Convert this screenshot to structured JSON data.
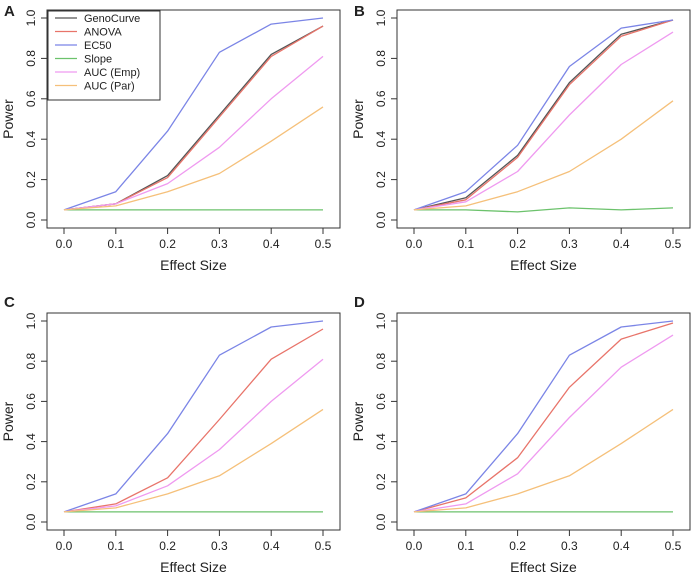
{
  "chart_data": [
    {
      "type": "line",
      "panel_label": "A",
      "xlabel": "Effect Size",
      "ylabel": "Power",
      "x": [
        0.0,
        0.1,
        0.2,
        0.3,
        0.4,
        0.5
      ],
      "x_tick_labels": [
        "0.0",
        "0.1",
        "0.2",
        "0.3",
        "0.4",
        "0.5"
      ],
      "y_ticks": [
        0.0,
        0.2,
        0.4,
        0.6,
        0.8,
        1.0
      ],
      "y_tick_labels": [
        "0.0",
        "0.2",
        "0.4",
        "0.6",
        "0.8",
        "1.0"
      ],
      "xlim": [
        0.0,
        0.5
      ],
      "ylim": [
        0.0,
        1.0
      ],
      "legend": "top-left",
      "series": [
        {
          "name": "GenoCurve",
          "color": "#555555",
          "values": [
            0.05,
            0.08,
            0.22,
            0.52,
            0.82,
            0.96
          ]
        },
        {
          "name": "ANOVA",
          "color": "#e8746a",
          "values": [
            0.05,
            0.08,
            0.21,
            0.51,
            0.81,
            0.96
          ]
        },
        {
          "name": "EC50",
          "color": "#7b85e6",
          "values": [
            0.05,
            0.14,
            0.44,
            0.83,
            0.97,
            1.0
          ]
        },
        {
          "name": "Slope",
          "color": "#6cc26c",
          "values": [
            0.05,
            0.05,
            0.05,
            0.05,
            0.05,
            0.05
          ]
        },
        {
          "name": "AUC (Emp)",
          "color": "#ef9af0",
          "values": [
            0.05,
            0.08,
            0.18,
            0.36,
            0.6,
            0.81
          ]
        },
        {
          "name": "AUC (Par)",
          "color": "#f5c07a",
          "values": [
            0.05,
            0.07,
            0.14,
            0.23,
            0.39,
            0.56
          ]
        }
      ]
    },
    {
      "type": "line",
      "panel_label": "B",
      "xlabel": "Effect Size",
      "ylabel": "Power",
      "x": [
        0.0,
        0.1,
        0.2,
        0.3,
        0.4,
        0.5
      ],
      "x_tick_labels": [
        "0.0",
        "0.1",
        "0.2",
        "0.3",
        "0.4",
        "0.5"
      ],
      "y_ticks": [
        0.0,
        0.2,
        0.4,
        0.6,
        0.8,
        1.0
      ],
      "y_tick_labels": [
        "0.0",
        "0.2",
        "0.4",
        "0.6",
        "0.8",
        "1.0"
      ],
      "xlim": [
        0.0,
        0.5
      ],
      "ylim": [
        0.0,
        1.0
      ],
      "legend": "none",
      "series": [
        {
          "name": "GenoCurve",
          "color": "#555555",
          "values": [
            0.05,
            0.11,
            0.32,
            0.68,
            0.92,
            0.99
          ]
        },
        {
          "name": "ANOVA",
          "color": "#e8746a",
          "values": [
            0.05,
            0.1,
            0.31,
            0.67,
            0.91,
            0.99
          ]
        },
        {
          "name": "EC50",
          "color": "#7b85e6",
          "values": [
            0.05,
            0.14,
            0.37,
            0.76,
            0.95,
            0.99
          ]
        },
        {
          "name": "Slope",
          "color": "#6cc26c",
          "values": [
            0.05,
            0.05,
            0.04,
            0.06,
            0.05,
            0.06
          ]
        },
        {
          "name": "AUC (Emp)",
          "color": "#ef9af0",
          "values": [
            0.05,
            0.09,
            0.24,
            0.52,
            0.77,
            0.93
          ]
        },
        {
          "name": "AUC (Par)",
          "color": "#f5c07a",
          "values": [
            0.05,
            0.07,
            0.14,
            0.24,
            0.4,
            0.59
          ]
        }
      ]
    },
    {
      "type": "line",
      "panel_label": "C",
      "xlabel": "Effect Size",
      "ylabel": "Power",
      "x": [
        0.0,
        0.1,
        0.2,
        0.3,
        0.4,
        0.5
      ],
      "x_tick_labels": [
        "0.0",
        "0.1",
        "0.2",
        "0.3",
        "0.4",
        "0.5"
      ],
      "y_ticks": [
        0.0,
        0.2,
        0.4,
        0.6,
        0.8,
        1.0
      ],
      "y_tick_labels": [
        "0.0",
        "0.2",
        "0.4",
        "0.6",
        "0.8",
        "1.0"
      ],
      "xlim": [
        0.0,
        0.5
      ],
      "ylim": [
        0.0,
        1.0
      ],
      "legend": "none",
      "series": [
        {
          "name": "ANOVA",
          "color": "#e8746a",
          "values": [
            0.05,
            0.09,
            0.22,
            0.51,
            0.81,
            0.96
          ]
        },
        {
          "name": "EC50",
          "color": "#7b85e6",
          "values": [
            0.05,
            0.14,
            0.44,
            0.83,
            0.97,
            1.0
          ]
        },
        {
          "name": "Slope",
          "color": "#6cc26c",
          "values": [
            0.05,
            0.05,
            0.05,
            0.05,
            0.05,
            0.05
          ]
        },
        {
          "name": "AUC (Emp)",
          "color": "#ef9af0",
          "values": [
            0.05,
            0.08,
            0.18,
            0.36,
            0.6,
            0.81
          ]
        },
        {
          "name": "AUC (Par)",
          "color": "#f5c07a",
          "values": [
            0.05,
            0.07,
            0.14,
            0.23,
            0.39,
            0.56
          ]
        }
      ]
    },
    {
      "type": "line",
      "panel_label": "D",
      "xlabel": "Effect Size",
      "ylabel": "Power",
      "x": [
        0.0,
        0.1,
        0.2,
        0.3,
        0.4,
        0.5
      ],
      "x_tick_labels": [
        "0.0",
        "0.1",
        "0.2",
        "0.3",
        "0.4",
        "0.5"
      ],
      "y_ticks": [
        0.0,
        0.2,
        0.4,
        0.6,
        0.8,
        1.0
      ],
      "y_tick_labels": [
        "0.0",
        "0.2",
        "0.4",
        "0.6",
        "0.8",
        "1.0"
      ],
      "xlim": [
        0.0,
        0.5
      ],
      "ylim": [
        0.0,
        1.0
      ],
      "legend": "none",
      "series": [
        {
          "name": "ANOVA",
          "color": "#e8746a",
          "values": [
            0.05,
            0.12,
            0.32,
            0.67,
            0.91,
            0.99
          ]
        },
        {
          "name": "EC50",
          "color": "#7b85e6",
          "values": [
            0.05,
            0.14,
            0.44,
            0.83,
            0.97,
            1.0
          ]
        },
        {
          "name": "Slope",
          "color": "#6cc26c",
          "values": [
            0.05,
            0.05,
            0.05,
            0.05,
            0.05,
            0.05
          ]
        },
        {
          "name": "AUC (Emp)",
          "color": "#ef9af0",
          "values": [
            0.05,
            0.09,
            0.24,
            0.52,
            0.77,
            0.93
          ]
        },
        {
          "name": "AUC (Par)",
          "color": "#f5c07a",
          "values": [
            0.05,
            0.07,
            0.14,
            0.23,
            0.39,
            0.56
          ]
        }
      ]
    }
  ]
}
